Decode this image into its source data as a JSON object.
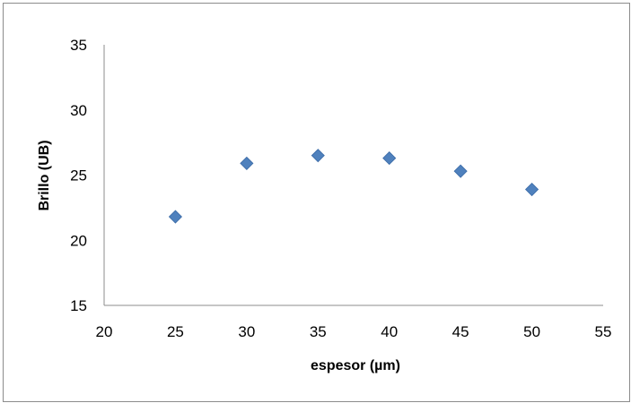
{
  "chart_data": {
    "type": "scatter",
    "title": "",
    "xlabel": "espesor (µm)",
    "ylabel": "Brillo (UB)",
    "xlim": [
      20,
      55
    ],
    "ylim": [
      15,
      35
    ],
    "xticks": [
      20,
      25,
      30,
      35,
      40,
      45,
      50,
      55
    ],
    "yticks": [
      15,
      20,
      25,
      30,
      35
    ],
    "grid": false,
    "legend": "none",
    "series": [
      {
        "color": "#4f81bd",
        "marker": "diamond",
        "x": [
          25,
          30,
          35,
          40,
          45,
          50
        ],
        "y": [
          21.8,
          25.9,
          26.5,
          26.3,
          25.3,
          23.9
        ]
      }
    ]
  }
}
